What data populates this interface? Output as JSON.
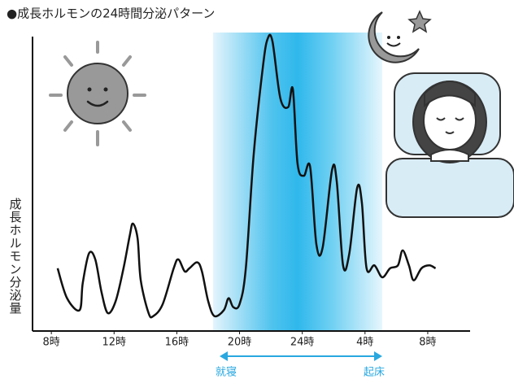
{
  "chart_data": {
    "type": "line",
    "title": "●成長ホルモンの24時間分泌パターン",
    "y_label": "成長ホルモン分泌量",
    "annotations": [
      "就寝",
      "起床"
    ],
    "x": [
      8.4,
      9.0,
      9.8,
      10.0,
      10.4,
      10.8,
      11.2,
      11.6,
      12.1,
      12.6,
      13.0,
      13.2,
      13.5,
      13.7,
      14.2,
      14.5,
      15.1,
      15.8,
      16.1,
      16.5,
      16.8,
      17.3,
      17.6,
      18.0,
      18.4,
      19.0,
      19.3,
      19.6,
      20.0,
      20.4,
      20.9,
      21.5,
      21.8,
      22.1,
      22.6,
      23.1,
      23.4,
      23.7,
      24.1,
      24.5,
      24.9,
      25.3,
      25.9,
      26.2,
      26.6,
      27.0,
      27.5,
      27.8,
      28.1,
      28.6,
      29.1,
      29.6,
      30.1,
      30.4,
      30.8,
      31.1,
      31.6,
      32.1,
      32.5
    ],
    "series": [
      {
        "color": "#111111",
        "values": [
          21,
          11,
          7,
          16,
          26,
          24,
          13,
          6,
          10,
          21,
          32,
          36,
          31,
          17,
          6,
          5,
          9,
          21,
          24,
          20,
          21,
          23,
          20,
          10,
          5,
          7,
          11,
          8,
          9,
          21,
          59,
          89,
          98,
          97,
          78,
          75,
          81,
          56,
          52,
          55,
          29,
          28,
          54,
          50,
          22,
          26,
          48,
          43,
          21,
          22,
          18,
          21,
          22,
          27,
          22,
          17,
          21,
          22,
          21
        ]
      }
    ],
    "xlim": [
      6.8,
      34.7
    ],
    "xticks": [
      {
        "value": 8,
        "label": "8時"
      },
      {
        "value": 12,
        "label": "12時"
      },
      {
        "value": 16,
        "label": "16時"
      },
      {
        "value": 20,
        "label": "20時"
      },
      {
        "value": 24,
        "label": "24時"
      },
      {
        "value": 28,
        "label": "4時"
      },
      {
        "value": 32,
        "label": "8時"
      }
    ],
    "ylim": [
      0,
      100
    ]
  }
}
